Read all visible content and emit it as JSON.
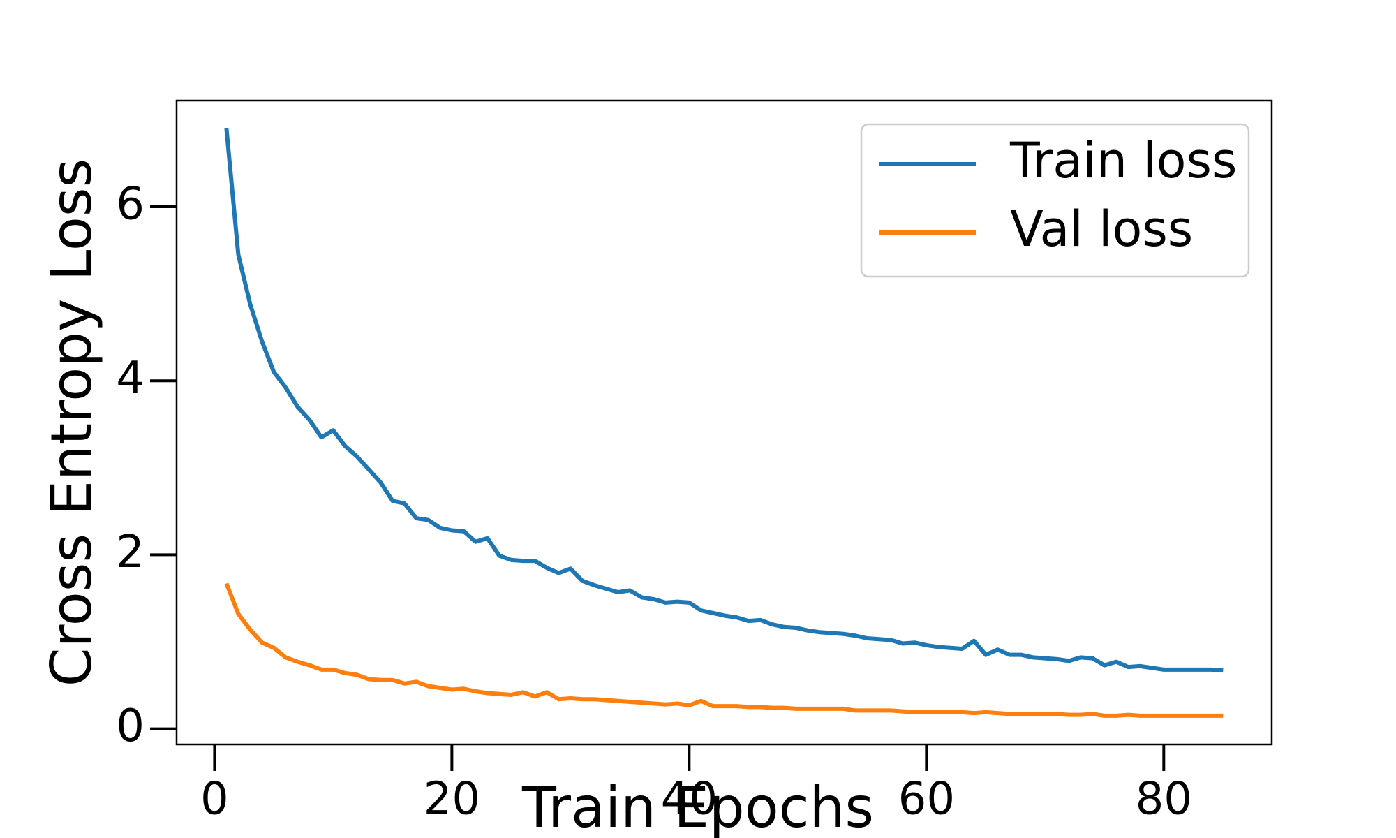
{
  "chart_data": {
    "type": "line",
    "x_label": "Train Epochs",
    "y_label": "Cross Entropy Loss",
    "x": [
      1,
      2,
      3,
      4,
      5,
      6,
      7,
      8,
      9,
      10,
      11,
      12,
      13,
      14,
      15,
      16,
      17,
      18,
      19,
      20,
      21,
      22,
      23,
      24,
      25,
      26,
      27,
      28,
      29,
      30,
      31,
      32,
      33,
      34,
      35,
      36,
      37,
      38,
      39,
      40,
      41,
      42,
      43,
      44,
      45,
      46,
      47,
      48,
      49,
      50,
      51,
      52,
      53,
      54,
      55,
      56,
      57,
      58,
      59,
      60,
      61,
      62,
      63,
      64,
      65,
      66,
      67,
      68,
      69,
      70,
      71,
      72,
      73,
      74,
      75,
      76,
      77,
      78,
      79,
      80,
      81,
      82,
      83,
      84,
      85
    ],
    "series": [
      {
        "name": "Train loss",
        "color": "#1f77b4",
        "values": [
          6.9,
          5.45,
          4.88,
          4.45,
          4.1,
          3.92,
          3.7,
          3.55,
          3.35,
          3.43,
          3.25,
          3.13,
          2.98,
          2.83,
          2.62,
          2.59,
          2.42,
          2.4,
          2.31,
          2.28,
          2.27,
          2.15,
          2.19,
          1.99,
          1.94,
          1.93,
          1.93,
          1.85,
          1.79,
          1.84,
          1.7,
          1.65,
          1.61,
          1.57,
          1.59,
          1.51,
          1.49,
          1.45,
          1.46,
          1.45,
          1.36,
          1.33,
          1.3,
          1.28,
          1.24,
          1.25,
          1.2,
          1.17,
          1.16,
          1.13,
          1.11,
          1.1,
          1.09,
          1.07,
          1.04,
          1.03,
          1.02,
          0.98,
          0.99,
          0.96,
          0.94,
          0.93,
          0.92,
          1.01,
          0.85,
          0.91,
          0.85,
          0.85,
          0.82,
          0.81,
          0.8,
          0.78,
          0.82,
          0.81,
          0.73,
          0.77,
          0.71,
          0.72,
          0.7,
          0.68,
          0.68,
          0.68,
          0.68,
          0.68,
          0.67
        ]
      },
      {
        "name": "Val loss",
        "color": "#ff7f0e",
        "values": [
          1.67,
          1.32,
          1.14,
          0.99,
          0.93,
          0.82,
          0.77,
          0.73,
          0.68,
          0.68,
          0.64,
          0.62,
          0.57,
          0.56,
          0.56,
          0.52,
          0.54,
          0.49,
          0.47,
          0.45,
          0.46,
          0.43,
          0.41,
          0.4,
          0.39,
          0.42,
          0.37,
          0.42,
          0.34,
          0.35,
          0.34,
          0.34,
          0.33,
          0.32,
          0.31,
          0.3,
          0.29,
          0.28,
          0.29,
          0.27,
          0.32,
          0.26,
          0.26,
          0.26,
          0.25,
          0.25,
          0.24,
          0.24,
          0.23,
          0.23,
          0.23,
          0.23,
          0.23,
          0.21,
          0.21,
          0.21,
          0.21,
          0.2,
          0.19,
          0.19,
          0.19,
          0.19,
          0.19,
          0.18,
          0.19,
          0.18,
          0.17,
          0.17,
          0.17,
          0.17,
          0.17,
          0.16,
          0.16,
          0.17,
          0.15,
          0.15,
          0.16,
          0.15,
          0.15,
          0.15,
          0.15,
          0.15,
          0.15,
          0.15,
          0.15
        ]
      }
    ],
    "xlim": [
      -3.2,
      89.1
    ],
    "ylim": [
      -0.18,
      7.22
    ],
    "xticks": [
      0,
      20,
      40,
      60,
      80
    ],
    "yticks": [
      0,
      2,
      4,
      6
    ],
    "grid": false,
    "legend": "upper right"
  }
}
